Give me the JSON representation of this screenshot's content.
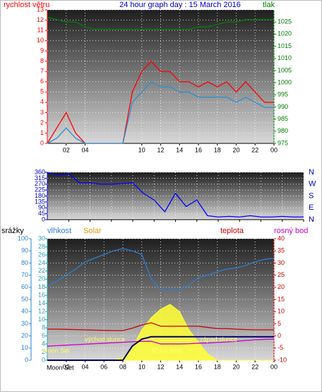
{
  "chart_data": [
    {
      "type": "line",
      "title": "24 hour graph day : 15 March 2016",
      "ylabel": "rychlost větru",
      "y2label": "tlak",
      "x": [
        0,
        1,
        2,
        3,
        4,
        5,
        6,
        7,
        8,
        9,
        10,
        11,
        12,
        13,
        14,
        15,
        16,
        17,
        18,
        19,
        20,
        21,
        22,
        23,
        24
      ],
      "xlim": [
        0,
        24
      ],
      "xticks": [
        {
          "value": 2,
          "label": "02"
        },
        {
          "value": 4,
          "label": "04"
        },
        10,
        12,
        14,
        16,
        18,
        20,
        22,
        {
          "value": 24,
          "label": "00"
        }
      ],
      "ylim": [
        0,
        13
      ],
      "yticks": [
        0,
        1,
        2,
        3,
        4,
        5,
        6,
        7,
        8,
        9,
        10,
        11,
        12,
        13
      ],
      "y2lim": [
        975,
        1030
      ],
      "y2ticks": [
        975,
        980,
        985,
        990,
        995,
        1000,
        1005,
        1010,
        1015,
        1020,
        1025
      ],
      "grid": true,
      "series": [
        {
          "color": "#ff0000",
          "values": [
            0,
            1.5,
            3,
            1,
            0,
            0,
            0,
            0,
            0,
            5,
            7,
            8,
            7,
            7,
            6,
            6,
            5.5,
            6,
            5.5,
            6,
            5,
            6,
            5,
            4,
            4
          ]
        },
        {
          "color": "#2f8fcf",
          "values": [
            0,
            0.5,
            1.5,
            0.5,
            0,
            0,
            0,
            0,
            0,
            4,
            5,
            6,
            5.5,
            5.5,
            5,
            5,
            4.5,
            4.5,
            4.5,
            4.5,
            4,
            4.5,
            4,
            3.5,
            3.5
          ]
        },
        {
          "color": "#008000",
          "axis": "y2",
          "values": [
            1027,
            1026,
            1025,
            1025,
            1023,
            1022,
            1022,
            1022,
            1022,
            1022,
            1022,
            1022,
            1022,
            1022,
            1022,
            1022,
            1023,
            1023,
            1024,
            1025,
            1025,
            1026,
            1026,
            1026,
            1026
          ]
        }
      ]
    },
    {
      "type": "line",
      "x": [
        0,
        1,
        2,
        3,
        4,
        5,
        6,
        7,
        8,
        9,
        10,
        11,
        12,
        13,
        14,
        15,
        16,
        17,
        18,
        19,
        20,
        21,
        22,
        23,
        24
      ],
      "xlim": [
        0,
        24
      ],
      "xticks": [
        2,
        4,
        6,
        8,
        10,
        12,
        14,
        16,
        18,
        20,
        22,
        24
      ],
      "ylim": [
        0,
        360
      ],
      "yticks": [
        0,
        45,
        90,
        135,
        180,
        225,
        270,
        315,
        360
      ],
      "y2lim": [
        0,
        360
      ],
      "y2ticks": [
        {
          "value": 0,
          "label": "N"
        },
        {
          "value": 90,
          "label": "E"
        },
        {
          "value": 180,
          "label": "S"
        },
        {
          "value": 270,
          "label": "W"
        },
        {
          "value": 360,
          "label": "N"
        }
      ],
      "grid": true,
      "series": [
        {
          "color": "#0000ff",
          "values": [
            360,
            340,
            350,
            280,
            280,
            270,
            270,
            275,
            280,
            200,
            150,
            60,
            200,
            100,
            150,
            30,
            20,
            25,
            20,
            30,
            20,
            20,
            25,
            20,
            20
          ]
        }
      ]
    },
    {
      "type": "line",
      "ylabel": "srážky",
      "y3label": "vlhkost",
      "y2label": "teplota",
      "x": [
        0,
        1,
        2,
        3,
        4,
        5,
        6,
        7,
        8,
        9,
        10,
        11,
        12,
        13,
        14,
        15,
        16,
        17,
        18,
        19,
        20,
        21,
        22,
        23,
        24
      ],
      "xlim": [
        0,
        24
      ],
      "xticks": [
        {
          "value": 2,
          "label": "02"
        },
        {
          "value": 4,
          "label": "04"
        },
        {
          "value": 6,
          "label": "06"
        },
        {
          "value": 8,
          "label": "08"
        },
        10,
        12,
        14,
        16,
        18,
        20,
        22,
        {
          "value": 24,
          "label": "00"
        }
      ],
      "ylim": [
        0,
        100
      ],
      "yticks": [
        0,
        10,
        20,
        30,
        40,
        50,
        60,
        70,
        80,
        90,
        100
      ],
      "y3lim": [
        0,
        30
      ],
      "y3ticks": [
        0,
        2,
        4,
        6,
        8,
        10,
        12,
        14,
        16,
        18,
        20,
        22,
        24,
        26,
        28,
        30
      ],
      "y2lim": [
        -10,
        40
      ],
      "y2ticks": [
        -10,
        -5,
        0,
        5,
        10,
        15,
        20,
        25,
        30,
        35,
        40
      ],
      "grid": true,
      "annotations": [
        "východ slunce",
        "západ slunce",
        "Moon Set",
        "Moon Rise",
        "Moon Set"
      ],
      "series": [
        {
          "name": "Solar",
          "color": "#ffff33",
          "area": true,
          "values": [
            0,
            0,
            0,
            0,
            0,
            0,
            0,
            0,
            2,
            10,
            25,
            35,
            42,
            46,
            40,
            25,
            15,
            5,
            0,
            0,
            0,
            0,
            0,
            0,
            0
          ]
        },
        {
          "color": "#2a7fd4",
          "values": [
            61,
            65,
            70,
            75,
            81,
            84,
            87,
            90,
            92,
            90,
            87,
            67,
            58,
            58,
            58,
            62,
            68,
            70,
            73,
            75,
            76,
            78,
            81,
            83,
            84
          ]
        },
        {
          "color": "#cc0000",
          "axis": "y2",
          "values": [
            2.8,
            2.8,
            2.7,
            2.6,
            2.5,
            2.4,
            2.3,
            2.2,
            2.2,
            3.2,
            4.5,
            5.4,
            4,
            4,
            4,
            4,
            4,
            3.5,
            3,
            3,
            2.8,
            2.6,
            2.5,
            2.5,
            2.5
          ]
        },
        {
          "name": "rosný bod",
          "color": "#cc00cc",
          "axis": "y2",
          "values": [
            -4.2,
            -4,
            -3.8,
            -3.6,
            -3.4,
            -3.2,
            -3,
            -2.8,
            -2.6,
            -2.4,
            -2.2,
            -2.2,
            -3.3,
            -3.3,
            -3.3,
            -3.2,
            -3,
            -2.9,
            -2.7,
            -2.5,
            -2.2,
            -1.9,
            -1.6,
            -1.4,
            -1.3
          ]
        },
        {
          "color": "#000066",
          "axis": "y3",
          "values": [
            0,
            0,
            0,
            0,
            0,
            0,
            0,
            0,
            0,
            3.5,
            5.2,
            5.8,
            5.8,
            5.8,
            5.8,
            5.8,
            5.8,
            5.8,
            5.8,
            5.8,
            5.8,
            5.8,
            5.8,
            5.8,
            5.8
          ]
        }
      ]
    }
  ]
}
